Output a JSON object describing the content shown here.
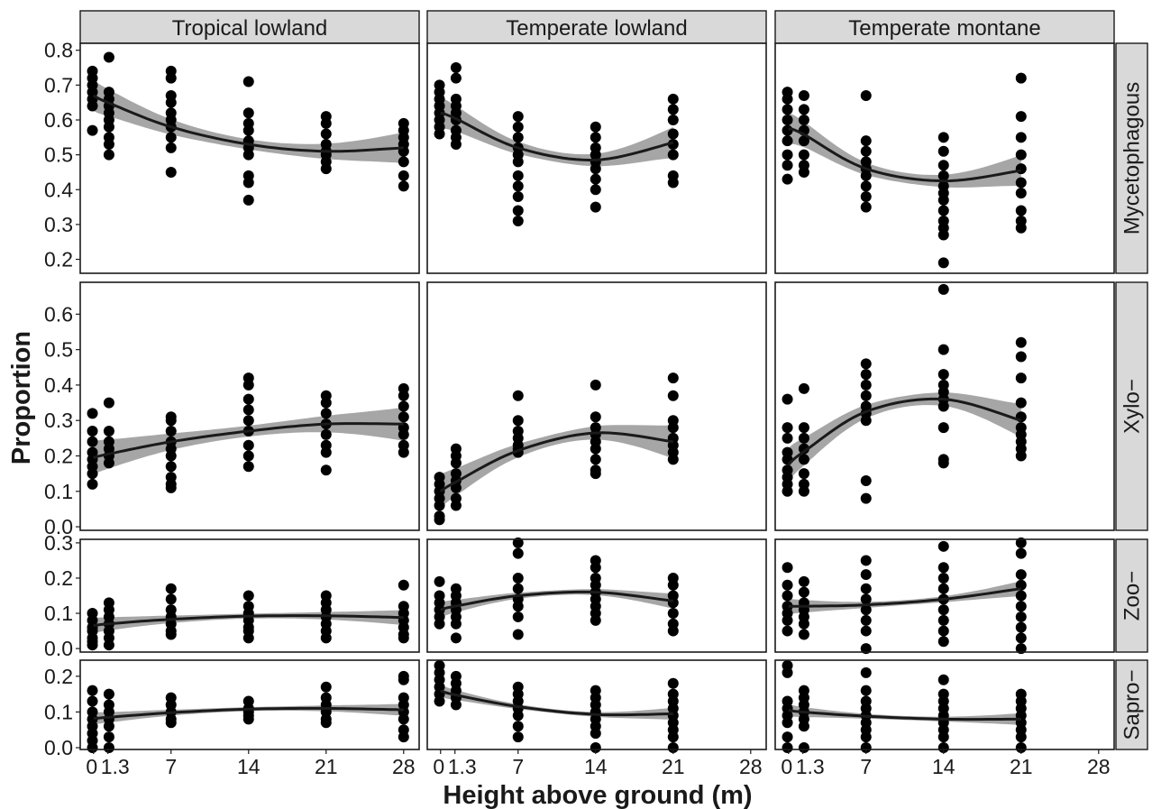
{
  "chart_data": {
    "type": "scatter",
    "xlabel": "Height above ground (m)",
    "ylabel": "Proportion",
    "x_ticks": [
      0,
      1.3,
      7,
      14,
      21,
      28
    ],
    "x_tick_labels": [
      "0",
      "1.3",
      "7",
      "14",
      "21",
      "28"
    ],
    "xlim": [
      -1.2,
      29.4
    ],
    "columns": [
      "Tropical lowland",
      "Temperate lowland",
      "Temperate montane"
    ],
    "rows": [
      {
        "label": "Mycetophagous",
        "ylim": [
          0.16,
          0.82
        ],
        "ticks": [
          0.2,
          0.3,
          0.4,
          0.5,
          0.6,
          0.7,
          0.8
        ],
        "tick_labels": [
          "0.2",
          "0.3",
          "0.4",
          "0.5",
          "0.6",
          "0.7",
          "0.8"
        ]
      },
      {
        "label": "Xylo−",
        "ylim": [
          -0.01,
          0.69
        ],
        "ticks": [
          0.0,
          0.1,
          0.2,
          0.3,
          0.4,
          0.5,
          0.6
        ],
        "tick_labels": [
          "0.0",
          "0.1",
          "0.2",
          "0.3",
          "0.4",
          "0.5",
          "0.6"
        ]
      },
      {
        "label": "Zoo−",
        "ylim": [
          -0.01,
          0.31
        ],
        "ticks": [
          0.0,
          0.1,
          0.2,
          0.3
        ],
        "tick_labels": [
          "0.0",
          "0.1",
          "0.2",
          "0.3"
        ]
      },
      {
        "label": "Sapro−",
        "ylim": [
          -0.005,
          0.245
        ],
        "ticks": [
          0.0,
          0.1,
          0.2
        ],
        "tick_labels": [
          "0.0",
          "0.1",
          "0.2"
        ]
      }
    ],
    "colors": {
      "points": "#000000",
      "fit_line": "#1a1a1a",
      "ribbon": "#a6a6a6",
      "strip": "#d9d9d9"
    },
    "panels": [
      {
        "row": 0,
        "col": 0,
        "fit": [
          [
            0,
            0.67
          ],
          [
            1.3,
            0.65
          ],
          [
            7,
            0.58
          ],
          [
            14,
            0.53
          ],
          [
            21,
            0.51
          ],
          [
            28,
            0.52
          ]
        ],
        "points": {
          "0": [
            0.74,
            0.72,
            0.7,
            0.68,
            0.66,
            0.64,
            0.57
          ],
          "1.3": [
            0.78,
            0.68,
            0.66,
            0.64,
            0.62,
            0.6,
            0.58,
            0.55,
            0.53,
            0.5
          ],
          "7": [
            0.74,
            0.72,
            0.67,
            0.65,
            0.62,
            0.6,
            0.58,
            0.55,
            0.52,
            0.45
          ],
          "14": [
            0.71,
            0.62,
            0.59,
            0.57,
            0.54,
            0.52,
            0.5,
            0.44,
            0.42,
            0.37
          ],
          "21": [
            0.61,
            0.59,
            0.56,
            0.53,
            0.51,
            0.5,
            0.48,
            0.46
          ],
          "28": [
            0.59,
            0.57,
            0.55,
            0.53,
            0.51,
            0.48,
            0.44,
            0.41
          ]
        }
      },
      {
        "row": 0,
        "col": 1,
        "fit": [
          [
            0,
            0.62
          ],
          [
            1.3,
            0.605
          ],
          [
            7,
            0.52
          ],
          [
            14,
            0.485
          ],
          [
            21,
            0.535
          ]
        ],
        "points": {
          "0": [
            0.7,
            0.68,
            0.66,
            0.64,
            0.62,
            0.6,
            0.58,
            0.56
          ],
          "1.3": [
            0.75,
            0.72,
            0.66,
            0.64,
            0.62,
            0.6,
            0.57,
            0.55,
            0.53
          ],
          "7": [
            0.61,
            0.58,
            0.55,
            0.52,
            0.5,
            0.48,
            0.44,
            0.41,
            0.38,
            0.34,
            0.31
          ],
          "14": [
            0.58,
            0.55,
            0.52,
            0.5,
            0.48,
            0.46,
            0.43,
            0.4,
            0.35
          ],
          "21": [
            0.66,
            0.63,
            0.6,
            0.56,
            0.53,
            0.5,
            0.44,
            0.42
          ]
        }
      },
      {
        "row": 0,
        "col": 2,
        "fit": [
          [
            0,
            0.575
          ],
          [
            1.3,
            0.56
          ],
          [
            7,
            0.46
          ],
          [
            14,
            0.425
          ],
          [
            21,
            0.455
          ]
        ],
        "points": {
          "0": [
            0.68,
            0.66,
            0.63,
            0.6,
            0.57,
            0.54,
            0.5,
            0.47,
            0.43
          ],
          "1.3": [
            0.67,
            0.63,
            0.6,
            0.57,
            0.54,
            0.5,
            0.47,
            0.45
          ],
          "7": [
            0.67,
            0.54,
            0.51,
            0.48,
            0.46,
            0.44,
            0.41,
            0.38,
            0.35
          ],
          "14": [
            0.55,
            0.51,
            0.47,
            0.44,
            0.41,
            0.39,
            0.37,
            0.34,
            0.31,
            0.29,
            0.27,
            0.19
          ],
          "21": [
            0.72,
            0.61,
            0.55,
            0.5,
            0.46,
            0.42,
            0.39,
            0.34,
            0.31,
            0.29
          ]
        }
      },
      {
        "row": 1,
        "col": 0,
        "fit": [
          [
            0,
            0.195
          ],
          [
            1.3,
            0.205
          ],
          [
            7,
            0.24
          ],
          [
            14,
            0.27
          ],
          [
            21,
            0.29
          ],
          [
            28,
            0.29
          ]
        ],
        "points": {
          "0": [
            0.32,
            0.27,
            0.24,
            0.21,
            0.19,
            0.17,
            0.15,
            0.12
          ],
          "1.3": [
            0.35,
            0.27,
            0.24,
            0.22,
            0.2,
            0.18
          ],
          "7": [
            0.31,
            0.3,
            0.27,
            0.24,
            0.22,
            0.2,
            0.17,
            0.14,
            0.12,
            0.11
          ],
          "14": [
            0.42,
            0.4,
            0.36,
            0.33,
            0.3,
            0.27,
            0.23,
            0.2,
            0.17
          ],
          "21": [
            0.37,
            0.35,
            0.32,
            0.29,
            0.26,
            0.23,
            0.21,
            0.16
          ],
          "28": [
            0.39,
            0.37,
            0.34,
            0.31,
            0.28,
            0.26,
            0.23,
            0.21
          ]
        }
      },
      {
        "row": 1,
        "col": 1,
        "fit": [
          [
            0,
            0.1
          ],
          [
            1.3,
            0.125
          ],
          [
            7,
            0.215
          ],
          [
            14,
            0.265
          ],
          [
            21,
            0.24
          ]
        ],
        "points": {
          "0": [
            0.14,
            0.12,
            0.1,
            0.08,
            0.06,
            0.03,
            0.02
          ],
          "1.3": [
            0.22,
            0.2,
            0.18,
            0.15,
            0.13,
            0.11,
            0.08,
            0.06
          ],
          "7": [
            0.37,
            0.3,
            0.27,
            0.25,
            0.23,
            0.22,
            0.21
          ],
          "14": [
            0.4,
            0.31,
            0.28,
            0.26,
            0.24,
            0.22,
            0.19,
            0.16,
            0.15
          ],
          "21": [
            0.42,
            0.37,
            0.3,
            0.28,
            0.25,
            0.23,
            0.21,
            0.19
          ]
        }
      },
      {
        "row": 1,
        "col": 2,
        "fit": [
          [
            0,
            0.175
          ],
          [
            1.3,
            0.21
          ],
          [
            7,
            0.325
          ],
          [
            14,
            0.36
          ],
          [
            21,
            0.3
          ]
        ],
        "points": {
          "0": [
            0.36,
            0.28,
            0.25,
            0.21,
            0.19,
            0.16,
            0.14,
            0.12,
            0.1
          ],
          "1.3": [
            0.39,
            0.28,
            0.25,
            0.22,
            0.19,
            0.15,
            0.12,
            0.1
          ],
          "7": [
            0.46,
            0.43,
            0.4,
            0.37,
            0.34,
            0.32,
            0.3,
            0.13,
            0.08
          ],
          "14": [
            0.67,
            0.5,
            0.43,
            0.4,
            0.38,
            0.36,
            0.34,
            0.28,
            0.19,
            0.18
          ],
          "21": [
            0.52,
            0.48,
            0.42,
            0.35,
            0.31,
            0.28,
            0.26,
            0.24,
            0.22,
            0.2
          ]
        }
      },
      {
        "row": 2,
        "col": 0,
        "fit": [
          [
            0,
            0.065
          ],
          [
            1.3,
            0.07
          ],
          [
            7,
            0.083
          ],
          [
            14,
            0.092
          ],
          [
            21,
            0.093
          ],
          [
            28,
            0.088
          ]
        ],
        "points": {
          "0": [
            0.1,
            0.08,
            0.06,
            0.05,
            0.03,
            0.02,
            0.01
          ],
          "1.3": [
            0.13,
            0.11,
            0.09,
            0.07,
            0.05,
            0.03,
            0.01
          ],
          "7": [
            0.17,
            0.14,
            0.11,
            0.09,
            0.07,
            0.05,
            0.04
          ],
          "14": [
            0.15,
            0.12,
            0.1,
            0.08,
            0.06,
            0.05,
            0.03
          ],
          "21": [
            0.15,
            0.13,
            0.11,
            0.09,
            0.07,
            0.05,
            0.03
          ],
          "28": [
            0.18,
            0.12,
            0.1,
            0.08,
            0.06,
            0.04,
            0.03
          ]
        }
      },
      {
        "row": 2,
        "col": 1,
        "fit": [
          [
            0,
            0.11
          ],
          [
            1.3,
            0.12
          ],
          [
            7,
            0.15
          ],
          [
            14,
            0.16
          ],
          [
            21,
            0.135
          ]
        ],
        "points": {
          "0": [
            0.19,
            0.15,
            0.13,
            0.11,
            0.09,
            0.07
          ],
          "1.3": [
            0.17,
            0.15,
            0.13,
            0.11,
            0.09,
            0.07,
            0.03
          ],
          "7": [
            0.3,
            0.27,
            0.2,
            0.17,
            0.14,
            0.12,
            0.09,
            0.04
          ],
          "14": [
            0.25,
            0.23,
            0.2,
            0.18,
            0.16,
            0.14,
            0.12,
            0.1,
            0.08
          ],
          "21": [
            0.2,
            0.18,
            0.15,
            0.13,
            0.1,
            0.07,
            0.05
          ]
        }
      },
      {
        "row": 2,
        "col": 2,
        "fit": [
          [
            0,
            0.12
          ],
          [
            1.3,
            0.12
          ],
          [
            7,
            0.124
          ],
          [
            14,
            0.14
          ],
          [
            21,
            0.17
          ]
        ],
        "points": {
          "0": [
            0.23,
            0.18,
            0.15,
            0.12,
            0.1,
            0.08,
            0.05
          ],
          "1.3": [
            0.19,
            0.16,
            0.13,
            0.11,
            0.09,
            0.07,
            0.04
          ],
          "7": [
            0.25,
            0.21,
            0.17,
            0.14,
            0.11,
            0.08,
            0.05,
            0.0
          ],
          "14": [
            0.29,
            0.23,
            0.2,
            0.17,
            0.14,
            0.11,
            0.08,
            0.05,
            0.02
          ],
          "21": [
            0.3,
            0.27,
            0.21,
            0.18,
            0.15,
            0.12,
            0.09,
            0.06,
            0.03,
            0.0
          ]
        }
      },
      {
        "row": 3,
        "col": 0,
        "fit": [
          [
            0,
            0.082
          ],
          [
            1.3,
            0.085
          ],
          [
            7,
            0.098
          ],
          [
            14,
            0.108
          ],
          [
            21,
            0.11
          ],
          [
            28,
            0.106
          ]
        ],
        "points": {
          "0": [
            0.16,
            0.13,
            0.1,
            0.08,
            0.06,
            0.04,
            0.02,
            0.0
          ],
          "1.3": [
            0.15,
            0.12,
            0.1,
            0.08,
            0.06,
            0.03,
            0.0
          ],
          "7": [
            0.14,
            0.12,
            0.1,
            0.08,
            0.07
          ],
          "14": [
            0.13,
            0.11,
            0.1,
            0.09,
            0.08
          ],
          "21": [
            0.17,
            0.14,
            0.12,
            0.1,
            0.08,
            0.07
          ],
          "28": [
            0.2,
            0.19,
            0.14,
            0.12,
            0.1,
            0.08,
            0.05,
            0.03
          ]
        }
      },
      {
        "row": 3,
        "col": 1,
        "fit": [
          [
            0,
            0.16
          ],
          [
            1.3,
            0.148
          ],
          [
            7,
            0.115
          ],
          [
            14,
            0.093
          ],
          [
            21,
            0.095
          ]
        ],
        "points": {
          "0": [
            0.23,
            0.21,
            0.19,
            0.17,
            0.15,
            0.13
          ],
          "1.3": [
            0.2,
            0.18,
            0.16,
            0.14,
            0.12
          ],
          "7": [
            0.17,
            0.15,
            0.13,
            0.11,
            0.09,
            0.06,
            0.03
          ],
          "14": [
            0.16,
            0.14,
            0.12,
            0.1,
            0.08,
            0.06,
            0.04,
            0.0
          ],
          "21": [
            0.18,
            0.15,
            0.13,
            0.11,
            0.09,
            0.07,
            0.05,
            0.03,
            0.0
          ]
        }
      },
      {
        "row": 3,
        "col": 2,
        "fit": [
          [
            0,
            0.105
          ],
          [
            1.3,
            0.1
          ],
          [
            7,
            0.088
          ],
          [
            14,
            0.08
          ],
          [
            21,
            0.08
          ]
        ],
        "points": {
          "0": [
            0.23,
            0.21,
            0.13,
            0.11,
            0.09,
            0.07,
            0.03,
            0.0
          ],
          "1.3": [
            0.16,
            0.14,
            0.12,
            0.1,
            0.08,
            0.06,
            0.0
          ],
          "7": [
            0.21,
            0.16,
            0.13,
            0.11,
            0.09,
            0.07,
            0.05,
            0.03,
            0.0
          ],
          "14": [
            0.19,
            0.15,
            0.13,
            0.11,
            0.09,
            0.07,
            0.05,
            0.03,
            0.0
          ],
          "21": [
            0.15,
            0.13,
            0.11,
            0.09,
            0.07,
            0.05,
            0.03,
            0.0
          ]
        }
      }
    ]
  }
}
